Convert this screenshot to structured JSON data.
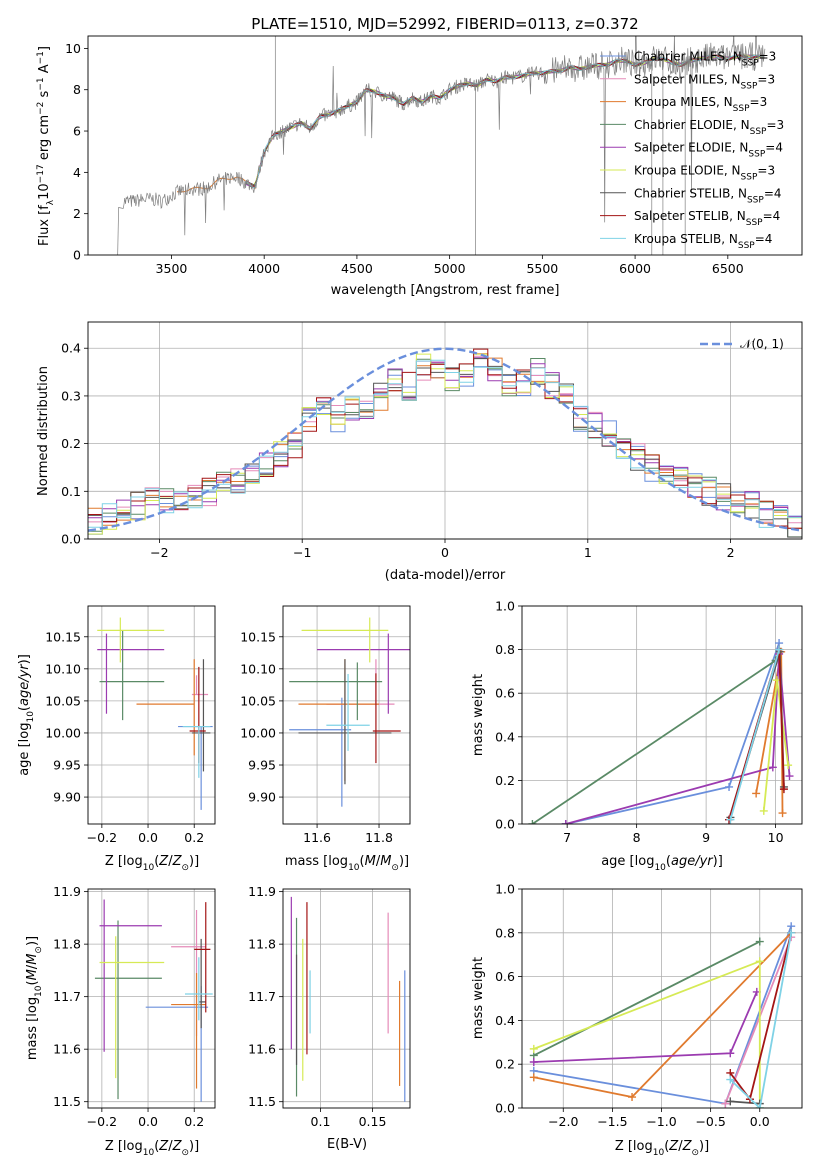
{
  "figure_title": "PLATE=1510, MJD=52992, FIBERID=0113, z=0.372",
  "models": [
    {
      "name": "Chabrier MILES",
      "nssp": "3",
      "color": "#6a8fdc"
    },
    {
      "name": "Salpeter MILES",
      "nssp": "3",
      "color": "#e58bb9"
    },
    {
      "name": "Kroupa MILES",
      "nssp": "3",
      "color": "#e07a2e"
    },
    {
      "name": "Chabrier ELODIE",
      "nssp": "3",
      "color": "#5a8a66"
    },
    {
      "name": "Salpeter ELODIE",
      "nssp": "4",
      "color": "#9b3bb0"
    },
    {
      "name": "Kroupa ELODIE",
      "nssp": "3",
      "color": "#d6ea55"
    },
    {
      "name": "Chabrier STELIB",
      "nssp": "4",
      "color": "#555555"
    },
    {
      "name": "Salpeter STELIB",
      "nssp": "4",
      "color": "#a31515"
    },
    {
      "name": "Kroupa STELIB",
      "nssp": "4",
      "color": "#7fd2e6"
    }
  ],
  "chart_data": [
    {
      "id": "spectrum",
      "type": "line",
      "xlabel": "wavelength [Angstrom, rest frame]",
      "ylabel": "Flux [f_λ 10^-17 erg cm^-2 s^-1 A^-1]",
      "xlim": [
        3050,
        6900
      ],
      "ylim": [
        0,
        10.6
      ],
      "xticks": [
        3500,
        4000,
        4500,
        5000,
        5500,
        6000,
        6500
      ],
      "yticks": [
        0,
        2,
        4,
        6,
        8,
        10
      ],
      "grid": false,
      "legend": "top-right",
      "data_series": {
        "name": "data",
        "color": "#808080",
        "x": [
          3210,
          3240,
          3300,
          3350,
          3400,
          3450,
          3500,
          3550,
          3600,
          3650,
          3700,
          3750,
          3800,
          3850,
          3900,
          3950,
          4000,
          4050,
          4100,
          4150,
          4200,
          4250,
          4300,
          4350,
          4400,
          4450,
          4500,
          4550,
          4600,
          4650,
          4700,
          4750,
          4800,
          4850,
          4900,
          4950,
          5000,
          5050,
          5100,
          5150,
          5200,
          5250,
          5300,
          5350,
          5400,
          5450,
          5500,
          5550,
          5600,
          5650,
          5700,
          5750,
          5800,
          5850,
          5900,
          5950,
          6000,
          6050,
          6100,
          6150,
          6200,
          6250,
          6300,
          6350,
          6400,
          6450,
          6500,
          6550,
          6600
        ],
        "y": [
          0,
          2.6,
          2.6,
          2.7,
          2.7,
          2.6,
          2.9,
          3.1,
          3.2,
          3.2,
          3.3,
          3.6,
          3.7,
          3.8,
          3.5,
          3.3,
          5.0,
          5.8,
          6.0,
          6.2,
          6.4,
          6.1,
          6.7,
          6.8,
          7.0,
          7.2,
          7.4,
          8.0,
          7.9,
          7.7,
          7.6,
          7.3,
          7.6,
          7.4,
          7.7,
          7.6,
          8.0,
          8.2,
          8.3,
          8.2,
          8.5,
          8.4,
          8.6,
          8.6,
          8.7,
          8.8,
          8.8,
          8.9,
          8.9,
          9.1,
          9.0,
          9.1,
          9.2,
          9.2,
          9.4,
          9.4,
          9.2,
          9.3,
          9.5,
          9.5,
          9.3,
          9.2,
          9.4,
          9.5,
          9.6,
          9.6,
          9.5,
          9.6,
          9.6
        ]
      },
      "model_starts": [
        3900,
        3900,
        3530,
        3900,
        3900,
        3920,
        3900,
        3900,
        3900
      ]
    },
    {
      "id": "residuals",
      "type": "area",
      "xlabel": "(data-model)/error",
      "ylabel": "Normed distribution",
      "xlim": [
        -2.5,
        2.5
      ],
      "ylim": [
        0,
        0.455
      ],
      "xticks": [
        -2,
        -1,
        0,
        1,
        2
      ],
      "yticks": [
        0.0,
        0.1,
        0.2,
        0.3,
        0.4
      ],
      "grid": true,
      "legend": "top-right",
      "reference": {
        "label": "𝒩(0, 1)",
        "color": "#6a8fdc"
      },
      "bin_edges": [
        -2.5,
        -2.4,
        -2.3,
        -2.2,
        -2.1,
        -2.0,
        -1.9,
        -1.8,
        -1.7,
        -1.6,
        -1.5,
        -1.4,
        -1.3,
        -1.2,
        -1.1,
        -1.0,
        -0.9,
        -0.8,
        -0.7,
        -0.6,
        -0.5,
        -0.4,
        -0.3,
        -0.2,
        -0.1,
        0.0,
        0.1,
        0.2,
        0.3,
        0.4,
        0.5,
        0.6,
        0.7,
        0.8,
        0.9,
        1.0,
        1.1,
        1.2,
        1.3,
        1.4,
        1.5,
        1.6,
        1.7,
        1.8,
        1.9,
        2.0,
        2.1,
        2.2,
        2.3,
        2.4,
        2.5
      ],
      "counts": [
        0.04,
        0.05,
        0.06,
        0.07,
        0.08,
        0.08,
        0.07,
        0.09,
        0.1,
        0.12,
        0.12,
        0.14,
        0.16,
        0.18,
        0.2,
        0.25,
        0.27,
        0.25,
        0.27,
        0.27,
        0.3,
        0.34,
        0.32,
        0.36,
        0.35,
        0.34,
        0.35,
        0.38,
        0.35,
        0.33,
        0.33,
        0.35,
        0.32,
        0.3,
        0.25,
        0.24,
        0.22,
        0.18,
        0.17,
        0.15,
        0.14,
        0.13,
        0.11,
        0.1,
        0.09,
        0.08,
        0.07,
        0.05,
        0.04,
        0.03
      ]
    },
    {
      "id": "age-vs-z",
      "type": "scatter",
      "xlabel": "Z [log10(Z/Z⊙)]",
      "ylabel": "age [log10(age/yr)]",
      "xlim": [
        -0.26,
        0.29
      ],
      "ylim": [
        9.858,
        10.198
      ],
      "xticks": [
        -0.2,
        0.0,
        0.2
      ],
      "yticks": [
        9.9,
        9.95,
        10.0,
        10.05,
        10.1,
        10.15
      ],
      "grid": true,
      "points": [
        {
          "x": 0.23,
          "y": 10.01,
          "xerr": [
            0.1,
            0.05
          ],
          "yerr": [
            0.13,
            0.0
          ]
        },
        {
          "x": 0.21,
          "y": 10.06,
          "xerr": [
            0.02,
            0.05
          ],
          "yerr": [
            0.0,
            0.03
          ]
        },
        {
          "x": 0.2,
          "y": 10.045,
          "xerr": [
            0.25,
            0.0
          ],
          "yerr": [
            0.08,
            0.07
          ]
        },
        {
          "x": -0.11,
          "y": 10.08,
          "xerr": [
            0.1,
            0.18
          ],
          "yerr": [
            0.06,
            0.08
          ]
        },
        {
          "x": -0.18,
          "y": 10.13,
          "xerr": [
            0.04,
            0.25
          ],
          "yerr": [
            0.1,
            0.025
          ]
        },
        {
          "x": -0.12,
          "y": 10.16,
          "xerr": [
            0.1,
            0.19
          ],
          "yerr": [
            0.05,
            0.02
          ]
        },
        {
          "x": 0.24,
          "y": 10.0,
          "xerr": [
            0.05,
            0.03
          ],
          "yerr": [
            0.06,
            0.115
          ]
        },
        {
          "x": 0.22,
          "y": 10.003,
          "xerr": [
            0.04,
            0.03
          ],
          "yerr": [
            0.05,
            0.1
          ]
        },
        {
          "x": 0.22,
          "y": 10.01,
          "xerr": [
            0.07,
            0.05
          ],
          "yerr": [
            0.08,
            0.0
          ]
        }
      ]
    },
    {
      "id": "age-vs-mass",
      "type": "scatter",
      "xlabel": "mass [log10(M/M⊙)]",
      "ylabel": "",
      "xlim": [
        11.49,
        11.9
      ],
      "ylim": [
        9.858,
        10.198
      ],
      "xticks": [
        11.6,
        11.8
      ],
      "yticks": [
        9.9,
        9.95,
        10.0,
        10.05,
        10.1,
        10.15
      ],
      "grid": true,
      "points": [
        {
          "x": 11.68,
          "y": 10.005,
          "xerr": [
            0.17,
            0.03
          ],
          "yerr": [
            0.12,
            0.05
          ]
        },
        {
          "x": 11.79,
          "y": 10.045,
          "xerr": [
            0.16,
            0.06
          ],
          "yerr": [
            0.0,
            0.07
          ]
        },
        {
          "x": 11.69,
          "y": 10.045,
          "xerr": [
            0.15,
            0.11
          ],
          "yerr": [
            0.12,
            0.07
          ]
        },
        {
          "x": 11.73,
          "y": 10.08,
          "xerr": [
            0.22,
            0.08
          ],
          "yerr": [
            0.06,
            0.03
          ]
        },
        {
          "x": 11.83,
          "y": 10.13,
          "xerr": [
            0.23,
            0.07
          ],
          "yerr": [
            0.1,
            0.025
          ]
        },
        {
          "x": 11.77,
          "y": 10.16,
          "xerr": [
            0.22,
            0.06
          ],
          "yerr": [
            0.05,
            0.02
          ]
        },
        {
          "x": 11.69,
          "y": 10.0,
          "xerr": [
            0.15,
            0.15
          ],
          "yerr": [
            0.08,
            0.115
          ]
        },
        {
          "x": 11.79,
          "y": 10.003,
          "xerr": [
            0.01,
            0.08
          ],
          "yerr": [
            0.05,
            0.09
          ]
        },
        {
          "x": 11.7,
          "y": 10.012,
          "xerr": [
            0.07,
            0.07
          ],
          "yerr": [
            0.04,
            0.08
          ]
        }
      ]
    },
    {
      "id": "weight-vs-age",
      "type": "line",
      "xlabel": "age [log10(age/yr)]",
      "ylabel": "mass weight",
      "xlim": [
        6.35,
        10.38
      ],
      "ylim": [
        0,
        1.0
      ],
      "xticks": [
        7,
        8,
        9,
        10
      ],
      "yticks": [
        0.0,
        0.2,
        0.4,
        0.6,
        0.8,
        1.0
      ],
      "grid": true,
      "series": [
        {
          "x": [
            6.98,
            9.33,
            10.05
          ],
          "y": [
            0.0,
            0.17,
            0.83
          ]
        },
        {
          "x": [
            9.33,
            10.05
          ],
          "y": [
            0.02,
            0.78
          ]
        },
        {
          "x": [
            9.72,
            10.08,
            10.1
          ],
          "y": [
            0.14,
            0.79,
            0.05
          ]
        },
        {
          "x": [
            6.5,
            10.0
          ],
          "y": [
            0.0,
            0.75
          ]
        },
        {
          "x": [
            6.98,
            9.96,
            10.05,
            10.2
          ],
          "y": [
            0.0,
            0.26,
            0.78,
            0.22
          ]
        },
        {
          "x": [
            9.83,
            10.02,
            10.18
          ],
          "y": [
            0.06,
            0.66,
            0.27
          ]
        },
        {
          "x": [
            9.35,
            10.06,
            10.12
          ],
          "y": [
            0.03,
            0.79,
            0.17
          ]
        },
        {
          "x": [
            9.33,
            10.05,
            10.12
          ],
          "y": [
            0.02,
            0.8,
            0.16
          ]
        },
        {
          "x": [
            9.35,
            10.05
          ],
          "y": [
            0.02,
            0.8
          ]
        }
      ]
    },
    {
      "id": "mass-vs-z",
      "type": "scatter",
      "xlabel": "Z [log10(Z/Z⊙)]",
      "ylabel": "mass [log10(M/M⊙)]",
      "xlim": [
        -0.26,
        0.29
      ],
      "ylim": [
        11.488,
        11.905
      ],
      "xticks": [
        -0.2,
        0.0,
        0.2
      ],
      "yticks": [
        11.5,
        11.6,
        11.7,
        11.8,
        11.9
      ],
      "grid": true,
      "points": [
        {
          "x": 0.23,
          "y": 11.68,
          "xerr": [
            0.24,
            0.03
          ],
          "yerr": [
            0.18,
            0.04
          ]
        },
        {
          "x": 0.21,
          "y": 11.795,
          "xerr": [
            0.11,
            0.04
          ],
          "yerr": [
            0.17,
            0.07
          ]
        },
        {
          "x": 0.21,
          "y": 11.685,
          "xerr": [
            0.11,
            0.04
          ],
          "yerr": [
            0.16,
            0.06
          ]
        },
        {
          "x": -0.13,
          "y": 11.735,
          "xerr": [
            0.1,
            0.19
          ],
          "yerr": [
            0.23,
            0.11
          ]
        },
        {
          "x": -0.19,
          "y": 11.835,
          "xerr": [
            0.02,
            0.25
          ],
          "yerr": [
            0.24,
            0.05
          ]
        },
        {
          "x": -0.14,
          "y": 11.765,
          "xerr": [
            0.07,
            0.21
          ],
          "yerr": [
            0.22,
            0.05
          ]
        },
        {
          "x": 0.23,
          "y": 11.69,
          "xerr": [
            0.01,
            0.02
          ],
          "yerr": [
            0.05,
            0.12
          ]
        },
        {
          "x": 0.25,
          "y": 11.79,
          "xerr": [
            0.05,
            0.02
          ],
          "yerr": [
            0.12,
            0.09
          ]
        },
        {
          "x": 0.22,
          "y": 11.705,
          "xerr": [
            0.06,
            0.06
          ],
          "yerr": [
            0.05,
            0.07
          ]
        }
      ]
    },
    {
      "id": "mass-vs-ebv",
      "type": "scatter",
      "xlabel": "E(B-V)",
      "ylabel": "",
      "xlim": [
        0.064,
        0.186
      ],
      "ylim": [
        11.488,
        11.905
      ],
      "xticks": [
        0.1,
        0.15
      ],
      "yticks": [
        11.5,
        11.6,
        11.7,
        11.8,
        11.9
      ],
      "grid": true,
      "points": [
        {
          "x": 0.181,
          "y": 11.62,
          "yerr": [
            0.12,
            0.13
          ]
        },
        {
          "x": 0.165,
          "y": 11.75,
          "yerr": [
            0.12,
            0.11
          ]
        },
        {
          "x": 0.176,
          "y": 11.63,
          "yerr": [
            0.1,
            0.1
          ]
        },
        {
          "x": 0.077,
          "y": 11.68,
          "yerr": [
            0.17,
            0.17
          ]
        },
        {
          "x": 0.072,
          "y": 11.75,
          "yerr": [
            0.15,
            0.14
          ]
        },
        {
          "x": 0.083,
          "y": 11.68,
          "yerr": [
            0.14,
            0.13
          ]
        },
        {
          "x": 0.077,
          "y": 11.67,
          "yerr": [
            0.1,
            0.11
          ]
        },
        {
          "x": 0.087,
          "y": 11.73,
          "yerr": [
            0.14,
            0.15
          ]
        },
        {
          "x": 0.09,
          "y": 11.69,
          "yerr": [
            0.06,
            0.06
          ]
        }
      ]
    },
    {
      "id": "weight-vs-z",
      "type": "line",
      "xlabel": "Z [log10(Z/Z⊙)]",
      "ylabel": "mass weight",
      "xlim": [
        -2.42,
        0.43
      ],
      "ylim": [
        0,
        1.0
      ],
      "xticks": [
        -2.0,
        -1.5,
        -1.0,
        -0.5,
        0.0
      ],
      "yticks": [
        0.0,
        0.2,
        0.4,
        0.6,
        0.8,
        1.0
      ],
      "grid": true,
      "series": [
        {
          "x": [
            -2.3,
            -0.35,
            0.32
          ],
          "y": [
            0.17,
            0.02,
            0.83
          ]
        },
        {
          "x": [
            -0.35,
            0.32
          ],
          "y": [
            0.02,
            0.78
          ]
        },
        {
          "x": [
            -2.3,
            -1.3,
            0.32
          ],
          "y": [
            0.14,
            0.05,
            0.8
          ]
        },
        {
          "x": [
            -2.3,
            0.0
          ],
          "y": [
            0.24,
            0.76
          ]
        },
        {
          "x": [
            -2.3,
            -0.3,
            -0.03
          ],
          "y": [
            0.21,
            0.25,
            0.53
          ]
        },
        {
          "x": [
            -2.3,
            0.0,
            0.0
          ],
          "y": [
            0.27,
            0.67,
            0.0
          ]
        },
        {
          "x": [
            -0.3,
            0.0
          ],
          "y": [
            0.03,
            0.02
          ]
        },
        {
          "x": [
            -0.3,
            -0.1,
            0.32
          ],
          "y": [
            0.16,
            0.04,
            0.8
          ]
        },
        {
          "x": [
            -0.3,
            0.0,
            0.32
          ],
          "y": [
            0.13,
            0.0,
            0.8
          ]
        }
      ]
    }
  ]
}
